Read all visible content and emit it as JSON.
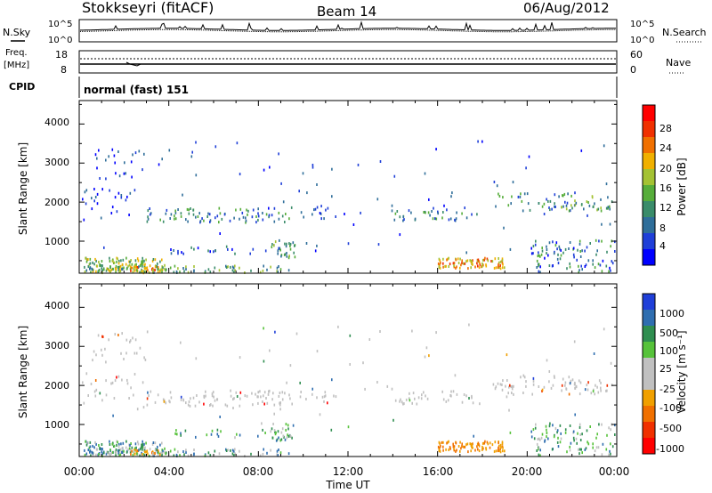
{
  "header": {
    "station": "Stokkseyri (fitACF)",
    "beam": "Beam 14",
    "date": "06/Aug/2012"
  },
  "noise_panel": {
    "left_label": "N.Sky",
    "right_label": "N.Search",
    "left_ticks": [
      "10^5",
      "10^0"
    ],
    "right_ticks": [
      "10^5",
      "10^0"
    ]
  },
  "freq_panel": {
    "left_label_1": "Freq.",
    "left_label_2": "[MHz]",
    "right_label": "Nave",
    "left_ticks": [
      "18",
      "8"
    ],
    "right_ticks": [
      "60",
      "0"
    ]
  },
  "cpid": {
    "label": "CPID",
    "value": "normal (fast) 151"
  },
  "power_panel": {
    "ylabel": "Slant Range [km]",
    "yticks": [
      "1000",
      "2000",
      "3000",
      "4000"
    ],
    "colorbar_label": "Power [dB]",
    "colorbar_ticks": [
      "4",
      "8",
      "12",
      "16",
      "20",
      "24",
      "28"
    ],
    "colors": [
      "#0000ff",
      "#1f3fd8",
      "#2f6e9a",
      "#3a8c6a",
      "#56ad3a",
      "#a4c233",
      "#f0b000",
      "#f07000",
      "#f03000",
      "#ff0000"
    ]
  },
  "velocity_panel": {
    "ylabel": "Slant Range [km]",
    "yticks": [
      "1000",
      "2000",
      "3000",
      "4000"
    ],
    "colorbar_label": "Velocity [m s⁻¹]",
    "colorbar_ticks": [
      "1000",
      "500",
      "100",
      "25",
      "-25",
      "-100",
      "-500",
      "-1000"
    ],
    "colors": [
      "#1f3fd8",
      "#2f6eb0",
      "#2f8e50",
      "#56c23a",
      "#c0c0c0",
      "#c0c0c0",
      "#f0a000",
      "#f07000",
      "#f03000",
      "#ff0000"
    ]
  },
  "xaxis": {
    "label": "Time UT",
    "ticks": [
      "00:00",
      "04:00",
      "08:00",
      "12:00",
      "16:00",
      "20:00",
      "00:00"
    ]
  },
  "chart_data": {
    "type": "heatmap",
    "xlabel": "Time UT",
    "ylabel": "Slant Range [km]",
    "ylim": [
      180,
      4600
    ],
    "x_range_hours": [
      0,
      24
    ],
    "panels": [
      "Power [dB]",
      "Velocity [m s⁻¹]"
    ],
    "power_scale": [
      0,
      30
    ],
    "velocity_scale": [
      -1000,
      1000
    ]
  }
}
